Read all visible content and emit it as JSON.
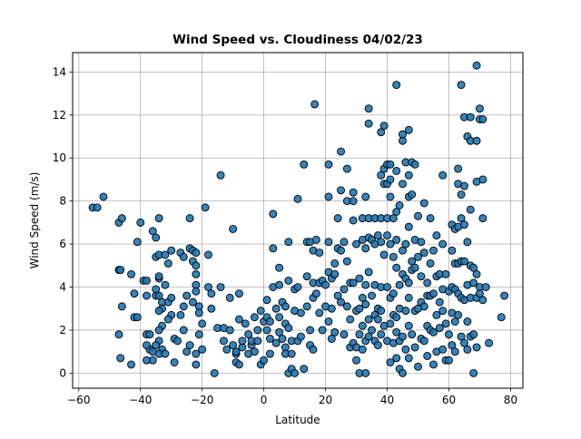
{
  "chart_data": {
    "type": "scatter",
    "title": "Wind Speed vs. Cloudiness 04/02/23",
    "xlabel": "Latitude",
    "ylabel": "Wind Speed (m/s)",
    "xlim": [
      -62,
      84
    ],
    "ylim": [
      -0.7,
      14.9
    ],
    "xticks": [
      -60,
      -40,
      -20,
      0,
      20,
      40,
      60,
      80
    ],
    "yticks": [
      0,
      2,
      4,
      6,
      8,
      10,
      12,
      14
    ],
    "grid": true,
    "legend": "none",
    "marker_color": "#1f77b4",
    "edge_color": "#000000",
    "points": [
      [
        -55.5,
        7.7
      ],
      [
        -54,
        7.7
      ],
      [
        -52,
        8.2
      ],
      [
        -47,
        7.0
      ],
      [
        -46,
        7.2
      ],
      [
        -47,
        4.8
      ],
      [
        -46.5,
        4.8
      ],
      [
        -46,
        3.1
      ],
      [
        -47,
        1.8
      ],
      [
        -46.5,
        0.7
      ],
      [
        -43,
        4.6
      ],
      [
        -42,
        3.7
      ],
      [
        -42,
        2.6
      ],
      [
        -41,
        2.6
      ],
      [
        -41,
        6.1
      ],
      [
        -40,
        7.0
      ],
      [
        -39,
        4.3
      ],
      [
        -43,
        0.4
      ],
      [
        -38,
        4.3
      ],
      [
        -38,
        3.6
      ],
      [
        -38,
        1.8
      ],
      [
        -37,
        1.1
      ],
      [
        -36,
        6.6
      ],
      [
        -35,
        6.3
      ],
      [
        -35,
        5.4
      ],
      [
        -34,
        5.5
      ],
      [
        -34,
        4.4
      ],
      [
        -34,
        4.5
      ],
      [
        -35,
        3.9
      ],
      [
        -35,
        3.6
      ],
      [
        -34,
        3.6
      ],
      [
        -33,
        3.3
      ],
      [
        -33,
        3.0
      ],
      [
        -34,
        2.9
      ],
      [
        -33,
        2.2
      ],
      [
        -34,
        2.0
      ],
      [
        -34,
        1.5
      ],
      [
        -35,
        1.3
      ],
      [
        -33,
        1.1
      ],
      [
        -34,
        0.9
      ],
      [
        -32,
        0.9
      ],
      [
        -36,
        0.6
      ],
      [
        -36,
        1.0
      ],
      [
        -37,
        1.8
      ],
      [
        -38,
        0.6
      ],
      [
        -38,
        1.3
      ],
      [
        -34,
        7.2
      ],
      [
        -32,
        5.5
      ],
      [
        -30,
        5.7
      ],
      [
        -31,
        5.1
      ],
      [
        -32,
        4.1
      ],
      [
        -31,
        3.3
      ],
      [
        -30,
        3.5
      ],
      [
        -30,
        2.7
      ],
      [
        -29,
        1.6
      ],
      [
        -28,
        1.5
      ],
      [
        -29,
        0.5
      ],
      [
        -31,
        2.5
      ],
      [
        -27,
        5.6
      ],
      [
        -26,
        5.4
      ],
      [
        -25,
        3.6
      ],
      [
        -26,
        3.1
      ],
      [
        -27,
        2.7
      ],
      [
        -26,
        2.0
      ],
      [
        -25,
        1.0
      ],
      [
        -24,
        7.2
      ],
      [
        -24,
        5.8
      ],
      [
        -23,
        5.7
      ],
      [
        -23,
        5.2
      ],
      [
        -22,
        5.6
      ],
      [
        -22,
        5.0
      ],
      [
        -22,
        4.6
      ],
      [
        -22,
        4.1
      ],
      [
        -23,
        3.3
      ],
      [
        -22,
        3.8
      ],
      [
        -21,
        3.1
      ],
      [
        -21,
        2.8
      ],
      [
        -20,
        2.3
      ],
      [
        -21,
        1.8
      ],
      [
        -20,
        1.1
      ],
      [
        -22,
        0.9
      ],
      [
        -22,
        0.4
      ],
      [
        -24,
        1.3
      ],
      [
        -19,
        7.7
      ],
      [
        -18,
        5.5
      ],
      [
        -18,
        4.0
      ],
      [
        -17,
        3.7
      ],
      [
        -17,
        3.0
      ],
      [
        -16,
        0.0
      ],
      [
        -15,
        2.1
      ],
      [
        -14,
        9.2
      ],
      [
        -14,
        4.0
      ],
      [
        -13,
        2.1
      ],
      [
        -13,
        1.5
      ],
      [
        -12,
        1.1
      ],
      [
        -11,
        3.5
      ],
      [
        -11,
        2.0
      ],
      [
        -10,
        1.3
      ],
      [
        -10,
        6.7
      ],
      [
        -9,
        0.5
      ],
      [
        -9,
        0.9
      ],
      [
        -8,
        3.7
      ],
      [
        -8,
        2.5
      ],
      [
        -7,
        1.2
      ],
      [
        -7,
        1.5
      ],
      [
        -8,
        0.4
      ],
      [
        -9,
        1.0
      ],
      [
        -6,
        2.3
      ],
      [
        -5,
        1.8
      ],
      [
        -5,
        0.9
      ],
      [
        -4,
        1.3
      ],
      [
        -4,
        1.5
      ],
      [
        -3,
        2.6
      ],
      [
        -3,
        1.0
      ],
      [
        -2,
        2.0
      ],
      [
        -2,
        1.5
      ],
      [
        -1,
        2.9
      ],
      [
        -1,
        0.4
      ],
      [
        0,
        0.6
      ],
      [
        0,
        2.4
      ],
      [
        1,
        3.4
      ],
      [
        1,
        2.6
      ],
      [
        1,
        2.0
      ],
      [
        2,
        2.4
      ],
      [
        2,
        1.6
      ],
      [
        2,
        0.9
      ],
      [
        3,
        7.4
      ],
      [
        3,
        5.8
      ],
      [
        3,
        4.0
      ],
      [
        4,
        3.0
      ],
      [
        4,
        1.4
      ],
      [
        5,
        4.9
      ],
      [
        5,
        4.1
      ],
      [
        5,
        2.6
      ],
      [
        5,
        1.9
      ],
      [
        6,
        3.3
      ],
      [
        6,
        1.6
      ],
      [
        7,
        3.1
      ],
      [
        7,
        2.3
      ],
      [
        7,
        1.2
      ],
      [
        7,
        0.9
      ],
      [
        8,
        6.1
      ],
      [
        8,
        4.3
      ],
      [
        8,
        2.1
      ],
      [
        8,
        0.0
      ],
      [
        9,
        1.5
      ],
      [
        9,
        0.9
      ],
      [
        9,
        0.2
      ],
      [
        10,
        3.9
      ],
      [
        10,
        2.9
      ],
      [
        10,
        0.0
      ],
      [
        11,
        8.1
      ],
      [
        11,
        4.0
      ],
      [
        11,
        1.5
      ],
      [
        12,
        2.8
      ],
      [
        12,
        1.7
      ],
      [
        13,
        0.2
      ],
      [
        13,
        9.7
      ],
      [
        14,
        6.1
      ],
      [
        14,
        4.5
      ],
      [
        14,
        3.1
      ],
      [
        15,
        6.1
      ],
      [
        15,
        2.0
      ],
      [
        15,
        1.3
      ],
      [
        16,
        5.7
      ],
      [
        16,
        4.2
      ],
      [
        16,
        3.5
      ],
      [
        16,
        1.1
      ],
      [
        16.5,
        12.5
      ],
      [
        17,
        6.2
      ],
      [
        17,
        3.7
      ],
      [
        18,
        5.6
      ],
      [
        18,
        4.2
      ],
      [
        18,
        2.8
      ],
      [
        19,
        4.3
      ],
      [
        19,
        2.0
      ],
      [
        20,
        4.1
      ],
      [
        20,
        3.1
      ],
      [
        21,
        9.7
      ],
      [
        21,
        8.2
      ],
      [
        21,
        6.1
      ],
      [
        21,
        4.7
      ],
      [
        21,
        2.4
      ],
      [
        22,
        4.4
      ],
      [
        22,
        3.0
      ],
      [
        22,
        1.6
      ],
      [
        23,
        5.1
      ],
      [
        23,
        4.6
      ],
      [
        23,
        1.9
      ],
      [
        24,
        7.2
      ],
      [
        24,
        5.8
      ],
      [
        24,
        3.6
      ],
      [
        25,
        10.3
      ],
      [
        25,
        8.5
      ],
      [
        25,
        5.7
      ],
      [
        25,
        3.3
      ],
      [
        26,
        6.1
      ],
      [
        26,
        3.9
      ],
      [
        26,
        1.8
      ],
      [
        27,
        9.5
      ],
      [
        27,
        8.0
      ],
      [
        27,
        5.2
      ],
      [
        27,
        3.1
      ],
      [
        28,
        4.2
      ],
      [
        28,
        2.5
      ],
      [
        28,
        1.2
      ],
      [
        29,
        8.4
      ],
      [
        29,
        8.0
      ],
      [
        29,
        7.1
      ],
      [
        29,
        4.2
      ],
      [
        29,
        1.4
      ],
      [
        30,
        6.0
      ],
      [
        30,
        2.9
      ],
      [
        30,
        1.2
      ],
      [
        30,
        0.6
      ],
      [
        31,
        4.4
      ],
      [
        31,
        3.0
      ],
      [
        31,
        1.8
      ],
      [
        31,
        0.0
      ],
      [
        32,
        7.2
      ],
      [
        32,
        6.2
      ],
      [
        32,
        3.5
      ],
      [
        32,
        2.2
      ],
      [
        32,
        1.1
      ],
      [
        33,
        8.2
      ],
      [
        33,
        5.8
      ],
      [
        33,
        4.1
      ],
      [
        33,
        3.2
      ],
      [
        33,
        1.5
      ],
      [
        33,
        0.0
      ],
      [
        34,
        12.3
      ],
      [
        34,
        11.6
      ],
      [
        34,
        7.2
      ],
      [
        34,
        6.3
      ],
      [
        34,
        4.7
      ],
      [
        34,
        2.5
      ],
      [
        34,
        1.7
      ],
      [
        35,
        6.2
      ],
      [
        35,
        3.6
      ],
      [
        35,
        2.0
      ],
      [
        36,
        7.2
      ],
      [
        36,
        6.0
      ],
      [
        36,
        4.1
      ],
      [
        36,
        2.7
      ],
      [
        36,
        1.5
      ],
      [
        37,
        6.4
      ],
      [
        37,
        3.0
      ],
      [
        37,
        2.5
      ],
      [
        37,
        1.3
      ],
      [
        38,
        11.2
      ],
      [
        38,
        9.2
      ],
      [
        38,
        7.2
      ],
      [
        38,
        6.1
      ],
      [
        38,
        4.0
      ],
      [
        38,
        2.9
      ],
      [
        38,
        1.8
      ],
      [
        39,
        11.5
      ],
      [
        39,
        9.5
      ],
      [
        39,
        8.8
      ],
      [
        39,
        5.5
      ],
      [
        39,
        2.2
      ],
      [
        40,
        9.7
      ],
      [
        40,
        8.8
      ],
      [
        40,
        7.2
      ],
      [
        40,
        6.4
      ],
      [
        40,
        4.0
      ],
      [
        40,
        1.5
      ],
      [
        41,
        9.7
      ],
      [
        41,
        9.0
      ],
      [
        41,
        8.2
      ],
      [
        41,
        6.0
      ],
      [
        41,
        3.5
      ],
      [
        41,
        2.3
      ],
      [
        41,
        0.5
      ],
      [
        42,
        7.2
      ],
      [
        42,
        5.4
      ],
      [
        42,
        3.7
      ],
      [
        42,
        2.7
      ],
      [
        42,
        1.4
      ],
      [
        43,
        13.4
      ],
      [
        43,
        9.4
      ],
      [
        43,
        7.5
      ],
      [
        43,
        6.2
      ],
      [
        43,
        4.9
      ],
      [
        43,
        2.6
      ],
      [
        43,
        1.9
      ],
      [
        43,
        0.7
      ],
      [
        44,
        7.8
      ],
      [
        44,
        4.1
      ],
      [
        44,
        3.0
      ],
      [
        44,
        1.5
      ],
      [
        44,
        0.2
      ],
      [
        45,
        10.8
      ],
      [
        45,
        11.1
      ],
      [
        45,
        8.8
      ],
      [
        45,
        5.7
      ],
      [
        45,
        4.6
      ],
      [
        45,
        1.7
      ],
      [
        45,
        0.0
      ],
      [
        46,
        9.8
      ],
      [
        46,
        6.0
      ],
      [
        46,
        4.4
      ],
      [
        46,
        2.9
      ],
      [
        46,
        1.1
      ],
      [
        47,
        11.3
      ],
      [
        47,
        9.2
      ],
      [
        47,
        8.2
      ],
      [
        47,
        6.8
      ],
      [
        47,
        4.2
      ],
      [
        47,
        3.5
      ],
      [
        47,
        2.2
      ],
      [
        47,
        0.7
      ],
      [
        48,
        9.8
      ],
      [
        48,
        8.3
      ],
      [
        48,
        5.2
      ],
      [
        48,
        4.8
      ],
      [
        48,
        1.8
      ],
      [
        49,
        9.7
      ],
      [
        49,
        6.2
      ],
      [
        49,
        4.9
      ],
      [
        49,
        2.9
      ],
      [
        49,
        1.2
      ],
      [
        50,
        7.3
      ],
      [
        50,
        5.4
      ],
      [
        50,
        3.0
      ],
      [
        50,
        0.3
      ],
      [
        51,
        6.1
      ],
      [
        51,
        4.5
      ],
      [
        51,
        3.3
      ],
      [
        51,
        1.6
      ],
      [
        52,
        7.9
      ],
      [
        52,
        5.6
      ],
      [
        52,
        3.1
      ],
      [
        52,
        1.5
      ],
      [
        53,
        4.2
      ],
      [
        53,
        3.6
      ],
      [
        53,
        2.2
      ],
      [
        53,
        0.8
      ],
      [
        54,
        7.2
      ],
      [
        54,
        5.1
      ],
      [
        54,
        3.6
      ],
      [
        54,
        2.0
      ],
      [
        55,
        5.7
      ],
      [
        55,
        3.7
      ],
      [
        55,
        1.9
      ],
      [
        55,
        0.4
      ],
      [
        56,
        6.4
      ],
      [
        56,
        4.5
      ],
      [
        56,
        2.7
      ],
      [
        56,
        1.0
      ],
      [
        57,
        4.6
      ],
      [
        57,
        3.3
      ],
      [
        57,
        2.1
      ],
      [
        58,
        9.2
      ],
      [
        58,
        6.0
      ],
      [
        58,
        3.9
      ],
      [
        58,
        2.9
      ],
      [
        58,
        1.1
      ],
      [
        59,
        4.6
      ],
      [
        59,
        2.3
      ],
      [
        59,
        0.6
      ],
      [
        60,
        3.8
      ],
      [
        60,
        1.8
      ],
      [
        60,
        0.6
      ],
      [
        61,
        6.9
      ],
      [
        61,
        5.7
      ],
      [
        61,
        4.0
      ],
      [
        61,
        2.8
      ],
      [
        61,
        1.3
      ],
      [
        62,
        6.7
      ],
      [
        62,
        5.1
      ],
      [
        62,
        3.9
      ],
      [
        62,
        2.4
      ],
      [
        62,
        1.0
      ],
      [
        63,
        9.5
      ],
      [
        63,
        8.8
      ],
      [
        63,
        6.8
      ],
      [
        63,
        5.1
      ],
      [
        63,
        3.7
      ],
      [
        63,
        2.7
      ],
      [
        64,
        13.4
      ],
      [
        64,
        8.3
      ],
      [
        64,
        7.2
      ],
      [
        64,
        5.2
      ],
      [
        64,
        3.5
      ],
      [
        64,
        1.7
      ],
      [
        65,
        11.9
      ],
      [
        65,
        8.7
      ],
      [
        65,
        6.9
      ],
      [
        65,
        5.2
      ],
      [
        65,
        3.4
      ],
      [
        65,
        1.4
      ],
      [
        66,
        11.0
      ],
      [
        66,
        6.1
      ],
      [
        66,
        4.1
      ],
      [
        66,
        2.4
      ],
      [
        66,
        1.1
      ],
      [
        67,
        11.9
      ],
      [
        67,
        10.8
      ],
      [
        67,
        7.6
      ],
      [
        67,
        5.0
      ],
      [
        67,
        3.5
      ],
      [
        67,
        1.7
      ],
      [
        68,
        4.9
      ],
      [
        68,
        4.2
      ],
      [
        68,
        1.8
      ],
      [
        68,
        0.0
      ],
      [
        69,
        14.3
      ],
      [
        69,
        10.8
      ],
      [
        69,
        8.9
      ],
      [
        69,
        4.6
      ],
      [
        69,
        3.5
      ],
      [
        69,
        1.2
      ],
      [
        70,
        12.3
      ],
      [
        70,
        11.8
      ],
      [
        70,
        4.0
      ],
      [
        70,
        3.7
      ],
      [
        71,
        11.8
      ],
      [
        71,
        9.0
      ],
      [
        71,
        7.2
      ],
      [
        71,
        3.4
      ],
      [
        72,
        4.0
      ],
      [
        73,
        1.4
      ],
      [
        77,
        2.6
      ],
      [
        78,
        3.6
      ]
    ]
  }
}
